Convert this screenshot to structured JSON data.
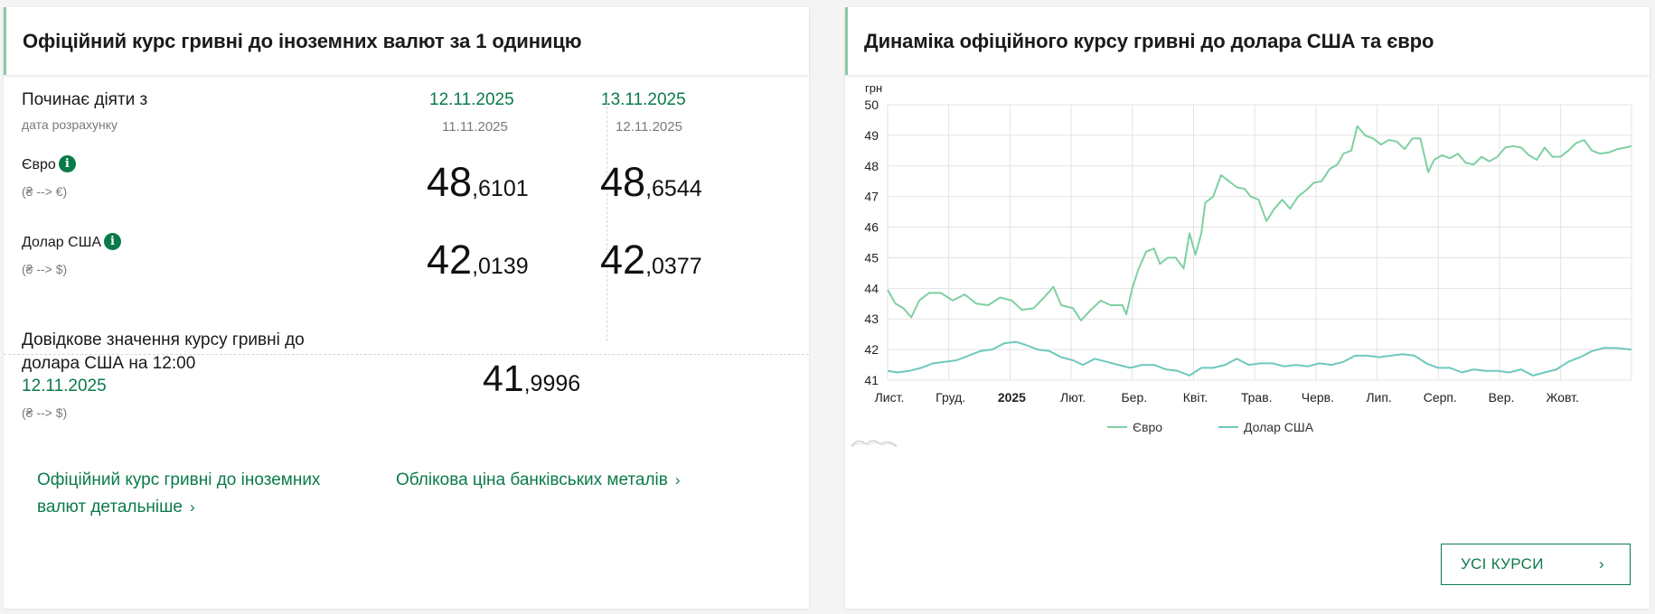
{
  "left": {
    "title": "Офіційний курс гривні до іноземних валют за 1 одиницю",
    "starts_label": "Починає діяти з",
    "calc_label": "дата розрахунку",
    "col1": {
      "date": "12.11.2025",
      "calc_date": "11.11.2025",
      "eur_int": "48",
      "eur_frac": ",6101",
      "usd_int": "42",
      "usd_frac": ",0139"
    },
    "col2": {
      "date": "13.11.2025",
      "calc_date": "12.11.2025",
      "eur_int": "48",
      "eur_frac": ",6544",
      "usd_int": "42",
      "usd_frac": ",0377"
    },
    "eur_label": "Євро",
    "eur_dir": "(₴ --> €)",
    "usd_label": "Долар США",
    "usd_dir": "(₴ --> $)",
    "info_glyph": "i",
    "ref_line1": "Довідкове значення курсу гривні до",
    "ref_line2": "долара США на 12:00",
    "ref_date": "12.11.2025",
    "ref_dir": "(₴ --> $)",
    "ref_int": "41",
    "ref_frac": ",9996",
    "link1_line1": "Офіційний курс гривні до іноземних",
    "link1_line2": "валют детальніше",
    "link2": "Облікова ціна банківських металів",
    "chevron": "›"
  },
  "right": {
    "title": "Динаміка офіційного курсу гривні до долара США та євро",
    "all_rates_button": "УСІ КУРСИ",
    "chevron": "›"
  },
  "colors": {
    "accent": "#0b7a4a",
    "eur_line": "#7fd0a2",
    "usd_line": "#6ec9bd"
  },
  "chart_data": {
    "type": "line",
    "ylabel": "грн",
    "ylim": [
      41,
      50
    ],
    "yticks": [
      41,
      42,
      43,
      44,
      45,
      46,
      47,
      48,
      49,
      50
    ],
    "xticks": [
      "Лист.",
      "Груд.",
      "2025",
      "Лют.",
      "Бер.",
      "Квіт.",
      "Трав.",
      "Черв.",
      "Лип.",
      "Серп.",
      "Вер.",
      "Жовт."
    ],
    "xtick_bold": "2025",
    "grid": true,
    "legend_position": "bottom",
    "x_start": "2024-11-01",
    "x_end": "2025-11-13",
    "series": [
      {
        "name": "Євро",
        "color": "#7fd0a2",
        "points": [
          [
            "2024-11-01",
            43.95
          ],
          [
            "2024-11-05",
            43.5
          ],
          [
            "2024-11-09",
            43.35
          ],
          [
            "2024-11-13",
            43.05
          ],
          [
            "2024-11-17",
            43.6
          ],
          [
            "2024-11-22",
            43.85
          ],
          [
            "2024-11-28",
            43.85
          ],
          [
            "2024-12-04",
            43.6
          ],
          [
            "2024-12-10",
            43.8
          ],
          [
            "2024-12-16",
            43.5
          ],
          [
            "2024-12-22",
            43.45
          ],
          [
            "2024-12-28",
            43.7
          ],
          [
            "2025-01-03",
            43.6
          ],
          [
            "2025-01-08",
            43.3
          ],
          [
            "2025-01-14",
            43.35
          ],
          [
            "2025-01-20",
            43.75
          ],
          [
            "2025-01-24",
            44.05
          ],
          [
            "2025-01-28",
            43.45
          ],
          [
            "2025-02-03",
            43.35
          ],
          [
            "2025-02-07",
            42.95
          ],
          [
            "2025-02-12",
            43.3
          ],
          [
            "2025-02-17",
            43.6
          ],
          [
            "2025-02-22",
            43.45
          ],
          [
            "2025-02-28",
            43.45
          ],
          [
            "2025-03-02",
            43.15
          ],
          [
            "2025-03-05",
            44.0
          ],
          [
            "2025-03-08",
            44.6
          ],
          [
            "2025-03-12",
            45.2
          ],
          [
            "2025-03-16",
            45.3
          ],
          [
            "2025-03-19",
            44.8
          ],
          [
            "2025-03-23",
            45.0
          ],
          [
            "2025-03-27",
            45.0
          ],
          [
            "2025-03-31",
            44.65
          ],
          [
            "2025-04-03",
            45.8
          ],
          [
            "2025-04-06",
            45.1
          ],
          [
            "2025-04-09",
            45.8
          ],
          [
            "2025-04-11",
            46.8
          ],
          [
            "2025-04-15",
            47.0
          ],
          [
            "2025-04-19",
            47.7
          ],
          [
            "2025-04-23",
            47.5
          ],
          [
            "2025-04-27",
            47.3
          ],
          [
            "2025-05-01",
            47.25
          ],
          [
            "2025-05-04",
            47.0
          ],
          [
            "2025-05-08",
            46.9
          ],
          [
            "2025-05-12",
            46.2
          ],
          [
            "2025-05-16",
            46.6
          ],
          [
            "2025-05-20",
            46.9
          ],
          [
            "2025-05-24",
            46.6
          ],
          [
            "2025-05-28",
            47.0
          ],
          [
            "2025-06-01",
            47.2
          ],
          [
            "2025-06-05",
            47.45
          ],
          [
            "2025-06-09",
            47.5
          ],
          [
            "2025-06-13",
            47.9
          ],
          [
            "2025-06-17",
            48.05
          ],
          [
            "2025-06-20",
            48.4
          ],
          [
            "2025-06-24",
            48.5
          ],
          [
            "2025-06-27",
            49.3
          ],
          [
            "2025-07-01",
            49.0
          ],
          [
            "2025-07-05",
            48.9
          ],
          [
            "2025-07-09",
            48.7
          ],
          [
            "2025-07-13",
            48.85
          ],
          [
            "2025-07-17",
            48.8
          ],
          [
            "2025-07-21",
            48.55
          ],
          [
            "2025-07-25",
            48.9
          ],
          [
            "2025-07-29",
            48.9
          ],
          [
            "2025-08-02",
            47.8
          ],
          [
            "2025-08-05",
            48.2
          ],
          [
            "2025-08-09",
            48.35
          ],
          [
            "2025-08-13",
            48.25
          ],
          [
            "2025-08-17",
            48.4
          ],
          [
            "2025-08-21",
            48.1
          ],
          [
            "2025-08-25",
            48.05
          ],
          [
            "2025-08-29",
            48.3
          ],
          [
            "2025-09-02",
            48.15
          ],
          [
            "2025-09-06",
            48.3
          ],
          [
            "2025-09-10",
            48.6
          ],
          [
            "2025-09-14",
            48.65
          ],
          [
            "2025-09-18",
            48.6
          ],
          [
            "2025-09-22",
            48.35
          ],
          [
            "2025-09-26",
            48.2
          ],
          [
            "2025-09-30",
            48.6
          ],
          [
            "2025-10-04",
            48.3
          ],
          [
            "2025-10-08",
            48.3
          ],
          [
            "2025-10-12",
            48.5
          ],
          [
            "2025-10-16",
            48.75
          ],
          [
            "2025-10-20",
            48.85
          ],
          [
            "2025-10-24",
            48.5
          ],
          [
            "2025-10-28",
            48.4
          ],
          [
            "2025-11-02",
            48.45
          ],
          [
            "2025-11-06",
            48.55
          ],
          [
            "2025-11-10",
            48.6
          ],
          [
            "2025-11-13",
            48.65
          ]
        ]
      },
      {
        "name": "Долар США",
        "color": "#6ec9bd",
        "points": [
          [
            "2024-11-01",
            41.3
          ],
          [
            "2024-11-06",
            41.25
          ],
          [
            "2024-11-12",
            41.3
          ],
          [
            "2024-11-18",
            41.4
          ],
          [
            "2024-11-24",
            41.55
          ],
          [
            "2024-11-30",
            41.6
          ],
          [
            "2024-12-06",
            41.65
          ],
          [
            "2024-12-12",
            41.8
          ],
          [
            "2024-12-18",
            41.95
          ],
          [
            "2024-12-24",
            42.0
          ],
          [
            "2024-12-30",
            42.2
          ],
          [
            "2025-01-05",
            42.25
          ],
          [
            "2025-01-10",
            42.15
          ],
          [
            "2025-01-16",
            42.0
          ],
          [
            "2025-01-22",
            41.95
          ],
          [
            "2025-01-28",
            41.75
          ],
          [
            "2025-02-03",
            41.65
          ],
          [
            "2025-02-08",
            41.5
          ],
          [
            "2025-02-14",
            41.7
          ],
          [
            "2025-02-20",
            41.6
          ],
          [
            "2025-02-26",
            41.5
          ],
          [
            "2025-03-04",
            41.4
          ],
          [
            "2025-03-10",
            41.5
          ],
          [
            "2025-03-16",
            41.5
          ],
          [
            "2025-03-22",
            41.35
          ],
          [
            "2025-03-28",
            41.3
          ],
          [
            "2025-04-03",
            41.15
          ],
          [
            "2025-04-09",
            41.4
          ],
          [
            "2025-04-15",
            41.4
          ],
          [
            "2025-04-21",
            41.5
          ],
          [
            "2025-04-27",
            41.7
          ],
          [
            "2025-05-03",
            41.5
          ],
          [
            "2025-05-09",
            41.55
          ],
          [
            "2025-05-15",
            41.55
          ],
          [
            "2025-05-21",
            41.45
          ],
          [
            "2025-05-27",
            41.5
          ],
          [
            "2025-06-02",
            41.45
          ],
          [
            "2025-06-08",
            41.55
          ],
          [
            "2025-06-14",
            41.5
          ],
          [
            "2025-06-20",
            41.6
          ],
          [
            "2025-06-26",
            41.8
          ],
          [
            "2025-07-02",
            41.8
          ],
          [
            "2025-07-08",
            41.75
          ],
          [
            "2025-07-14",
            41.8
          ],
          [
            "2025-07-20",
            41.85
          ],
          [
            "2025-07-26",
            41.8
          ],
          [
            "2025-08-01",
            41.55
          ],
          [
            "2025-08-07",
            41.4
          ],
          [
            "2025-08-13",
            41.4
          ],
          [
            "2025-08-19",
            41.25
          ],
          [
            "2025-08-25",
            41.35
          ],
          [
            "2025-08-31",
            41.3
          ],
          [
            "2025-09-06",
            41.3
          ],
          [
            "2025-09-12",
            41.25
          ],
          [
            "2025-09-18",
            41.35
          ],
          [
            "2025-09-24",
            41.15
          ],
          [
            "2025-09-30",
            41.25
          ],
          [
            "2025-10-06",
            41.35
          ],
          [
            "2025-10-12",
            41.6
          ],
          [
            "2025-10-18",
            41.75
          ],
          [
            "2025-10-24",
            41.95
          ],
          [
            "2025-10-30",
            42.05
          ],
          [
            "2025-11-05",
            42.05
          ],
          [
            "2025-11-13",
            42.0
          ]
        ]
      }
    ]
  }
}
